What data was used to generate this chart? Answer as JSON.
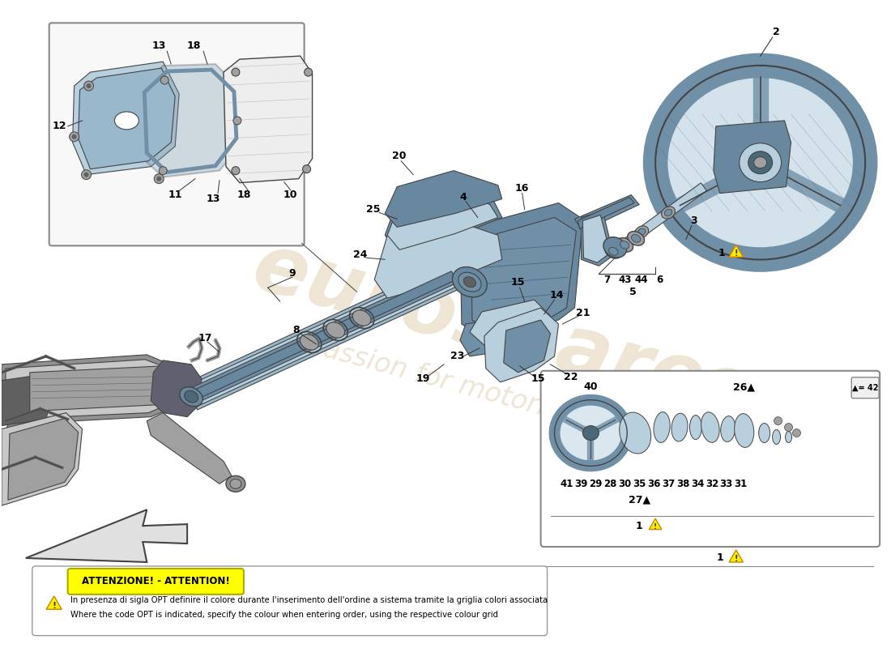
{
  "bg_color": "#ffffff",
  "fig_width": 11.0,
  "fig_height": 8.0,
  "watermark_color": "#c8a870",
  "watermark_alpha": 0.3,
  "attention_title": "ATTENZIONE! - ATTENTION!",
  "attention_body_it": "In presenza di sigla OPT definire il colore durante l'inserimento dell'ordine a sistema tramite la griglia colori associata",
  "attention_body_en": "Where the code OPT is indicated, specify the colour when entering order, using the respective colour grid",
  "diagram_colors": {
    "steel_blue": "#7090a8",
    "light_blue": "#9ab8cc",
    "pale_blue": "#b8d0de",
    "dark_blue": "#4a6878",
    "mid_blue": "#6888a0",
    "gray": "#888888",
    "light_gray": "#c8c8c8",
    "mid_gray": "#a0a0a0",
    "dark_gray": "#606060",
    "outline": "#444444",
    "rack_gray": "#909090",
    "rack_dark": "#606070"
  }
}
